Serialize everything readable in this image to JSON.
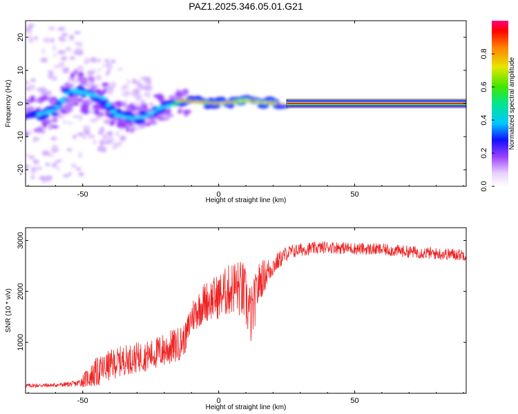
{
  "title": "PAZ1.2025.346.05.01.G21",
  "chart_data": [
    {
      "type": "heatmap",
      "xlabel": "Height of straight line (km)",
      "ylabel": "Frequency (Hz)",
      "xlim": [
        -71,
        91
      ],
      "ylim": [
        -25,
        25
      ],
      "xticks": [
        -50,
        0,
        50
      ],
      "yticks": [
        -20,
        -10,
        0,
        10,
        20
      ],
      "colorbar": {
        "label": "Normalized spectral amplitude",
        "range": [
          0,
          1
        ],
        "ticks": [
          "0.0",
          "0.2",
          "0.4",
          "0.6",
          "0.8"
        ]
      },
      "ridge": [
        {
          "x": -67,
          "f": -3.5
        },
        {
          "x": -60,
          "f": -2.0
        },
        {
          "x": -55,
          "f": 4.0
        },
        {
          "x": -48,
          "f": 3.0
        },
        {
          "x": -42,
          "f": 1.5
        },
        {
          "x": -38,
          "f": -3.5
        },
        {
          "x": -32,
          "f": -4.5
        },
        {
          "x": -27,
          "f": -4.0
        },
        {
          "x": -22,
          "f": -1.5
        },
        {
          "x": -17,
          "f": -0.5
        },
        {
          "x": -14,
          "f": 1.0
        },
        {
          "x": -8,
          "f": 0.5
        },
        {
          "x": 0,
          "f": 0.0
        },
        {
          "x": 6,
          "f": 0.5
        },
        {
          "x": 10,
          "f": 1.0
        },
        {
          "x": 16,
          "f": 0.3
        },
        {
          "x": 25,
          "f": 0.0
        },
        {
          "x": 91,
          "f": 0.0
        }
      ]
    },
    {
      "type": "line",
      "xlabel": "Height of straight line (km)",
      "ylabel": "SNR (10 * v/v)",
      "xlim": [
        -71,
        91
      ],
      "ylim": [
        0,
        3250
      ],
      "xticks": [
        -50,
        0,
        50
      ],
      "yticks": [
        1000,
        2000,
        3000
      ],
      "series": [
        {
          "name": "SNR",
          "color": "#ee2222",
          "x": [
            -71,
            -60,
            -52,
            -45,
            -40,
            -35,
            -30,
            -25,
            -20,
            -15,
            -12,
            -10,
            -5,
            0,
            3,
            6,
            9,
            12,
            15,
            20,
            25,
            30,
            40,
            50,
            60,
            70,
            80,
            91
          ],
          "y": [
            150,
            160,
            190,
            400,
            550,
            650,
            700,
            750,
            850,
            950,
            1100,
            1500,
            1800,
            1900,
            2000,
            2100,
            2000,
            1500,
            2200,
            2500,
            2750,
            2820,
            2870,
            2840,
            2820,
            2780,
            2740,
            2720
          ],
          "amplitude": [
            40,
            40,
            60,
            300,
            300,
            300,
            300,
            300,
            350,
            350,
            300,
            350,
            400,
            450,
            500,
            550,
            600,
            600,
            400,
            200,
            150,
            130,
            120,
            120,
            120,
            120,
            120,
            120
          ]
        }
      ]
    }
  ]
}
